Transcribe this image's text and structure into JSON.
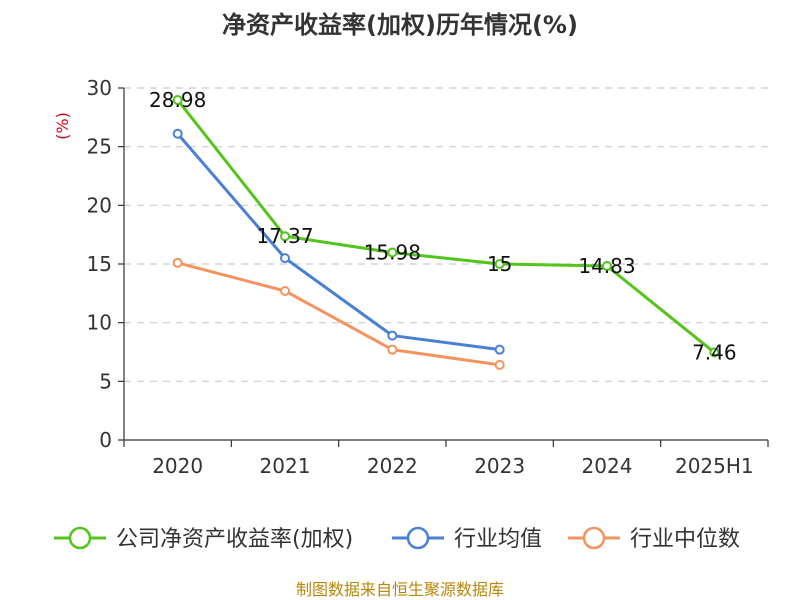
{
  "chart_data": {
    "type": "line",
    "title": "净资产收益率(加权)历年情况(%)",
    "ylabel": "(%)",
    "xlabel": "",
    "ylim": [
      0,
      30
    ],
    "yticks": [
      0,
      5,
      10,
      15,
      20,
      25,
      30
    ],
    "categories": [
      "2020",
      "2021",
      "2022",
      "2023",
      "2024",
      "2025H1"
    ],
    "grid": true,
    "legend_position": "bottom",
    "series": [
      {
        "name": "公司净资产收益率(加权)",
        "color": "#52c41a",
        "values": [
          28.98,
          17.37,
          15.98,
          15,
          14.83,
          7.46
        ],
        "labels": [
          "28.98",
          "17.37",
          "15.98",
          "15",
          "14.83",
          "7.46"
        ]
      },
      {
        "name": "行业均值",
        "color": "#4a7fd6",
        "values": [
          26.1,
          15.5,
          8.9,
          7.7,
          null,
          null
        ]
      },
      {
        "name": "行业中位数",
        "color": "#f4935f",
        "values": [
          15.1,
          12.7,
          7.7,
          6.4,
          null,
          null
        ]
      }
    ]
  },
  "colors": {
    "unit_label": "#d9001b",
    "source": "#b8860b",
    "axis": "#333333",
    "grid": "#cccccc"
  },
  "source_text": "制图数据来自恒生聚源数据库"
}
